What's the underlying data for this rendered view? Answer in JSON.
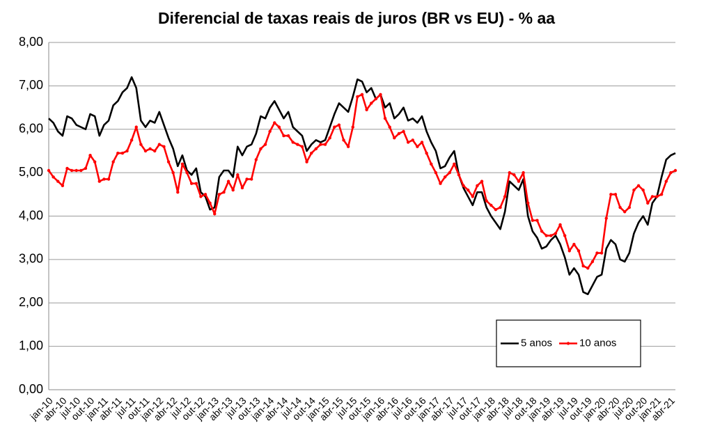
{
  "chart_data": {
    "type": "line",
    "title": "Diferencial de taxas reais de juros (BR vs EU) - % aa",
    "categories": [
      "jan-10",
      null,
      null,
      "abr-10",
      null,
      null,
      "jul-10",
      null,
      null,
      "out-10",
      null,
      null,
      "jan-11",
      null,
      null,
      "abr-11",
      null,
      null,
      "jul-11",
      null,
      null,
      "out-11",
      null,
      null,
      "jan-12",
      null,
      null,
      "abr-12",
      null,
      null,
      "jul-12",
      null,
      null,
      "out-12",
      null,
      null,
      "jan-13",
      null,
      null,
      "abr-13",
      null,
      null,
      "jul-13",
      null,
      null,
      "out-13",
      null,
      null,
      "jan-14",
      null,
      null,
      "abr-14",
      null,
      null,
      "jul-14",
      null,
      null,
      "out-14",
      null,
      null,
      "jan-15",
      null,
      null,
      "abr-15",
      null,
      null,
      "jul-15",
      null,
      null,
      "out-15",
      null,
      null,
      "jan-16",
      null,
      null,
      "abr-16",
      null,
      null,
      "jul-16",
      null,
      null,
      "out-16",
      null,
      null,
      "jan-17",
      null,
      null,
      "abr-17",
      null,
      null,
      "jul-17",
      null,
      null,
      "out-17",
      null,
      null,
      "jan-18",
      null,
      null,
      "abr-18",
      null,
      null,
      "jul-18",
      null,
      null,
      "out-18",
      null,
      null,
      "jan-19",
      null,
      null,
      "abr-19",
      null,
      null,
      "jul-19",
      null,
      null,
      "out-19",
      null,
      null,
      "jan-20",
      null,
      null,
      "abr-20",
      null,
      null,
      "jul-20",
      null,
      null,
      "out-20",
      null,
      null,
      "jan-21",
      null,
      null,
      "abr-21",
      null
    ],
    "series": [
      {
        "name": "5 anos",
        "color": "#000000",
        "values": [
          6.25,
          6.15,
          5.95,
          5.85,
          6.3,
          6.25,
          6.1,
          6.05,
          6.0,
          6.35,
          6.3,
          5.85,
          6.1,
          6.2,
          6.55,
          6.65,
          6.85,
          6.95,
          7.2,
          6.95,
          6.2,
          6.05,
          6.2,
          6.15,
          6.4,
          6.1,
          5.8,
          5.55,
          5.15,
          5.4,
          5.05,
          4.95,
          5.1,
          4.55,
          4.45,
          4.15,
          4.2,
          4.9,
          5.05,
          5.05,
          4.9,
          5.6,
          5.4,
          5.6,
          5.65,
          5.9,
          6.3,
          6.25,
          6.5,
          6.65,
          6.45,
          6.25,
          6.4,
          6.05,
          5.95,
          5.85,
          5.5,
          5.65,
          5.75,
          5.7,
          5.75,
          6.05,
          6.35,
          6.6,
          6.5,
          6.4,
          6.75,
          7.15,
          7.1,
          6.85,
          6.95,
          6.7,
          6.8,
          6.5,
          6.6,
          6.25,
          6.35,
          6.5,
          6.2,
          6.25,
          6.15,
          6.3,
          5.95,
          5.7,
          5.5,
          5.1,
          5.15,
          5.35,
          5.5,
          4.95,
          4.65,
          4.45,
          4.25,
          4.55,
          4.55,
          4.2,
          4.0,
          3.85,
          3.7,
          4.1,
          4.8,
          4.7,
          4.6,
          4.85,
          4.0,
          3.65,
          3.5,
          3.25,
          3.3,
          3.45,
          3.55,
          3.35,
          3.05,
          2.65,
          2.8,
          2.65,
          2.25,
          2.2,
          2.4,
          2.6,
          2.65,
          3.25,
          3.45,
          3.35,
          3.0,
          2.95,
          3.15,
          3.6,
          3.85,
          4.0,
          3.8,
          4.3,
          4.45,
          4.9,
          5.3,
          5.4,
          5.45
        ]
      },
      {
        "name": "10 anos",
        "color": "#ff0000",
        "marker": "circle",
        "values": [
          5.05,
          4.9,
          4.8,
          4.7,
          5.1,
          5.05,
          5.05,
          5.05,
          5.1,
          5.4,
          5.25,
          4.8,
          4.85,
          4.85,
          5.25,
          5.45,
          5.45,
          5.5,
          5.75,
          6.05,
          5.65,
          5.5,
          5.55,
          5.5,
          5.65,
          5.6,
          5.25,
          5.0,
          4.55,
          5.2,
          5.0,
          4.75,
          4.75,
          4.45,
          4.5,
          4.3,
          4.05,
          4.5,
          4.55,
          4.8,
          4.6,
          4.95,
          4.65,
          4.85,
          4.85,
          5.3,
          5.55,
          5.65,
          5.95,
          6.15,
          6.05,
          5.85,
          5.85,
          5.7,
          5.65,
          5.6,
          5.25,
          5.45,
          5.55,
          5.65,
          5.65,
          5.8,
          6.05,
          6.1,
          5.75,
          5.6,
          6.05,
          6.75,
          6.8,
          6.45,
          6.6,
          6.7,
          6.8,
          6.25,
          6.05,
          5.8,
          5.9,
          5.95,
          5.7,
          5.75,
          5.6,
          5.7,
          5.45,
          5.2,
          5.0,
          4.75,
          4.9,
          5.0,
          5.2,
          4.95,
          4.7,
          4.6,
          4.45,
          4.7,
          4.8,
          4.35,
          4.25,
          4.15,
          4.2,
          4.45,
          5.0,
          4.95,
          4.8,
          5.0,
          4.3,
          3.9,
          3.9,
          3.65,
          3.55,
          3.55,
          3.6,
          3.8,
          3.55,
          3.2,
          3.35,
          3.2,
          2.85,
          2.8,
          2.95,
          3.15,
          3.15,
          3.95,
          4.5,
          4.5,
          4.2,
          4.1,
          4.2,
          4.6,
          4.7,
          4.6,
          4.3,
          4.45,
          4.45,
          4.5,
          4.8,
          5.0,
          5.05
        ]
      }
    ],
    "ylim": [
      0,
      8
    ],
    "yticks": [
      {
        "value": 0,
        "label": "0,00"
      },
      {
        "value": 1,
        "label": "1,00"
      },
      {
        "value": 2,
        "label": "2,00"
      },
      {
        "value": 3,
        "label": "3,00"
      },
      {
        "value": 4,
        "label": "4,00"
      },
      {
        "value": 5,
        "label": "5,00"
      },
      {
        "value": 6,
        "label": "6,00"
      },
      {
        "value": 7,
        "label": "7,00"
      },
      {
        "value": 8,
        "label": "8,00"
      }
    ],
    "grid": true,
    "legend": "lower right"
  }
}
